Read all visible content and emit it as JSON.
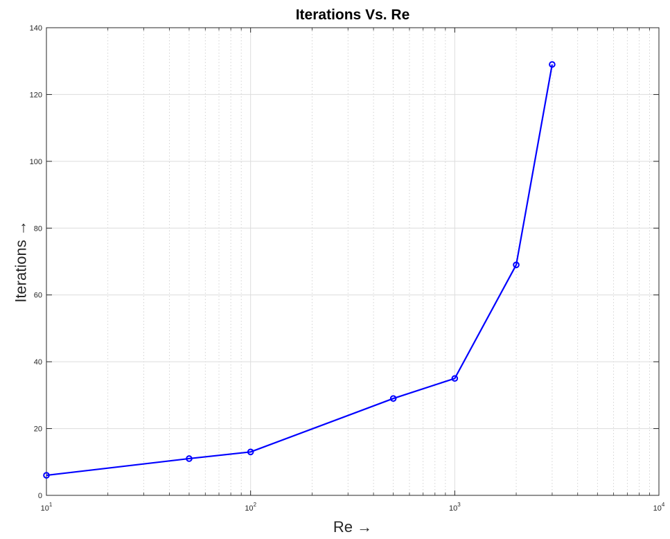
{
  "chart_data": {
    "type": "line",
    "title": "Iterations Vs. Re",
    "xlabel": "Re →",
    "ylabel": "Iterations →",
    "xscale": "log",
    "xlim": [
      10,
      10000
    ],
    "ylim": [
      0,
      140
    ],
    "grid": true,
    "minor_grid": true,
    "x_ticks": [
      {
        "value": 10,
        "base": "10",
        "exp": "1"
      },
      {
        "value": 100,
        "base": "10",
        "exp": "2"
      },
      {
        "value": 1000,
        "base": "10",
        "exp": "3"
      },
      {
        "value": 10000,
        "base": "10",
        "exp": "4"
      }
    ],
    "y_ticks": [
      {
        "value": 0,
        "label": "0"
      },
      {
        "value": 20,
        "label": "20"
      },
      {
        "value": 40,
        "label": "40"
      },
      {
        "value": 60,
        "label": "60"
      },
      {
        "value": 80,
        "label": "80"
      },
      {
        "value": 100,
        "label": "100"
      },
      {
        "value": 120,
        "label": "120"
      },
      {
        "value": 140,
        "label": "140"
      }
    ],
    "series": [
      {
        "x": [
          10,
          50,
          100,
          500,
          1000,
          2000,
          3000
        ],
        "y": [
          6,
          11,
          13,
          29,
          35,
          69,
          129
        ],
        "color": "#0000ff",
        "marker": "circle"
      }
    ]
  }
}
